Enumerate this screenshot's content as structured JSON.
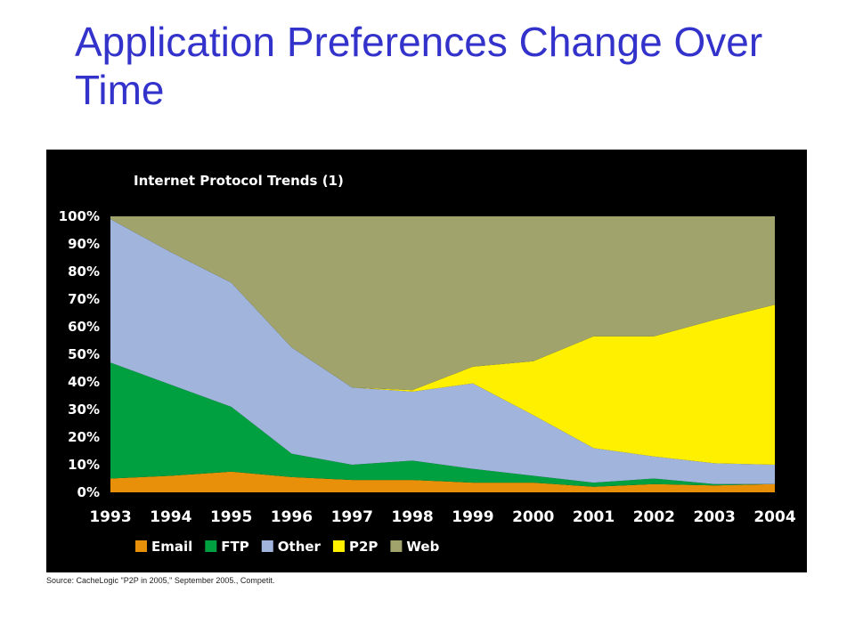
{
  "slide": {
    "title": "Application Preferences Change Over Time",
    "source": "Source: CacheLogic \"P2P in 2005,\" September 2005., Competit."
  },
  "chart_data": {
    "type": "area",
    "stacked": true,
    "percent": true,
    "title": "Internet Protocol Trends (1)",
    "x": [
      "1993",
      "1994",
      "1995",
      "1996",
      "1997",
      "1998",
      "1999",
      "2000",
      "2001",
      "2002",
      "2003",
      "2004"
    ],
    "ylim": [
      0,
      100
    ],
    "yticks": [
      "0%",
      "10%",
      "20%",
      "30%",
      "40%",
      "50%",
      "60%",
      "70%",
      "80%",
      "90%",
      "100%"
    ],
    "legend_position": "bottom",
    "series": [
      {
        "name": "Email",
        "color": "#e8900a",
        "values": [
          5,
          6,
          7.5,
          5.5,
          4.5,
          4.5,
          3.5,
          3.5,
          2,
          3,
          2.5,
          3
        ]
      },
      {
        "name": "FTP",
        "color": "#00a040",
        "values": [
          42,
          33,
          23.5,
          8.5,
          5.5,
          7,
          5,
          2.5,
          1.5,
          2,
          0.5,
          0
        ]
      },
      {
        "name": "Other",
        "color": "#a0b4dc",
        "values": [
          52,
          48,
          45,
          38.5,
          28,
          25,
          31,
          22,
          12.5,
          8,
          7.5,
          7
        ]
      },
      {
        "name": "P2P",
        "color": "#fff000",
        "values": [
          0,
          0,
          0,
          0,
          0,
          0.5,
          6,
          19.5,
          40.5,
          43.5,
          52,
          58
        ]
      },
      {
        "name": "Web",
        "color": "#a0a46c",
        "values": [
          1,
          13,
          24,
          47.5,
          62,
          63,
          54.5,
          52.5,
          43.5,
          43.5,
          37.5,
          32
        ]
      }
    ]
  }
}
